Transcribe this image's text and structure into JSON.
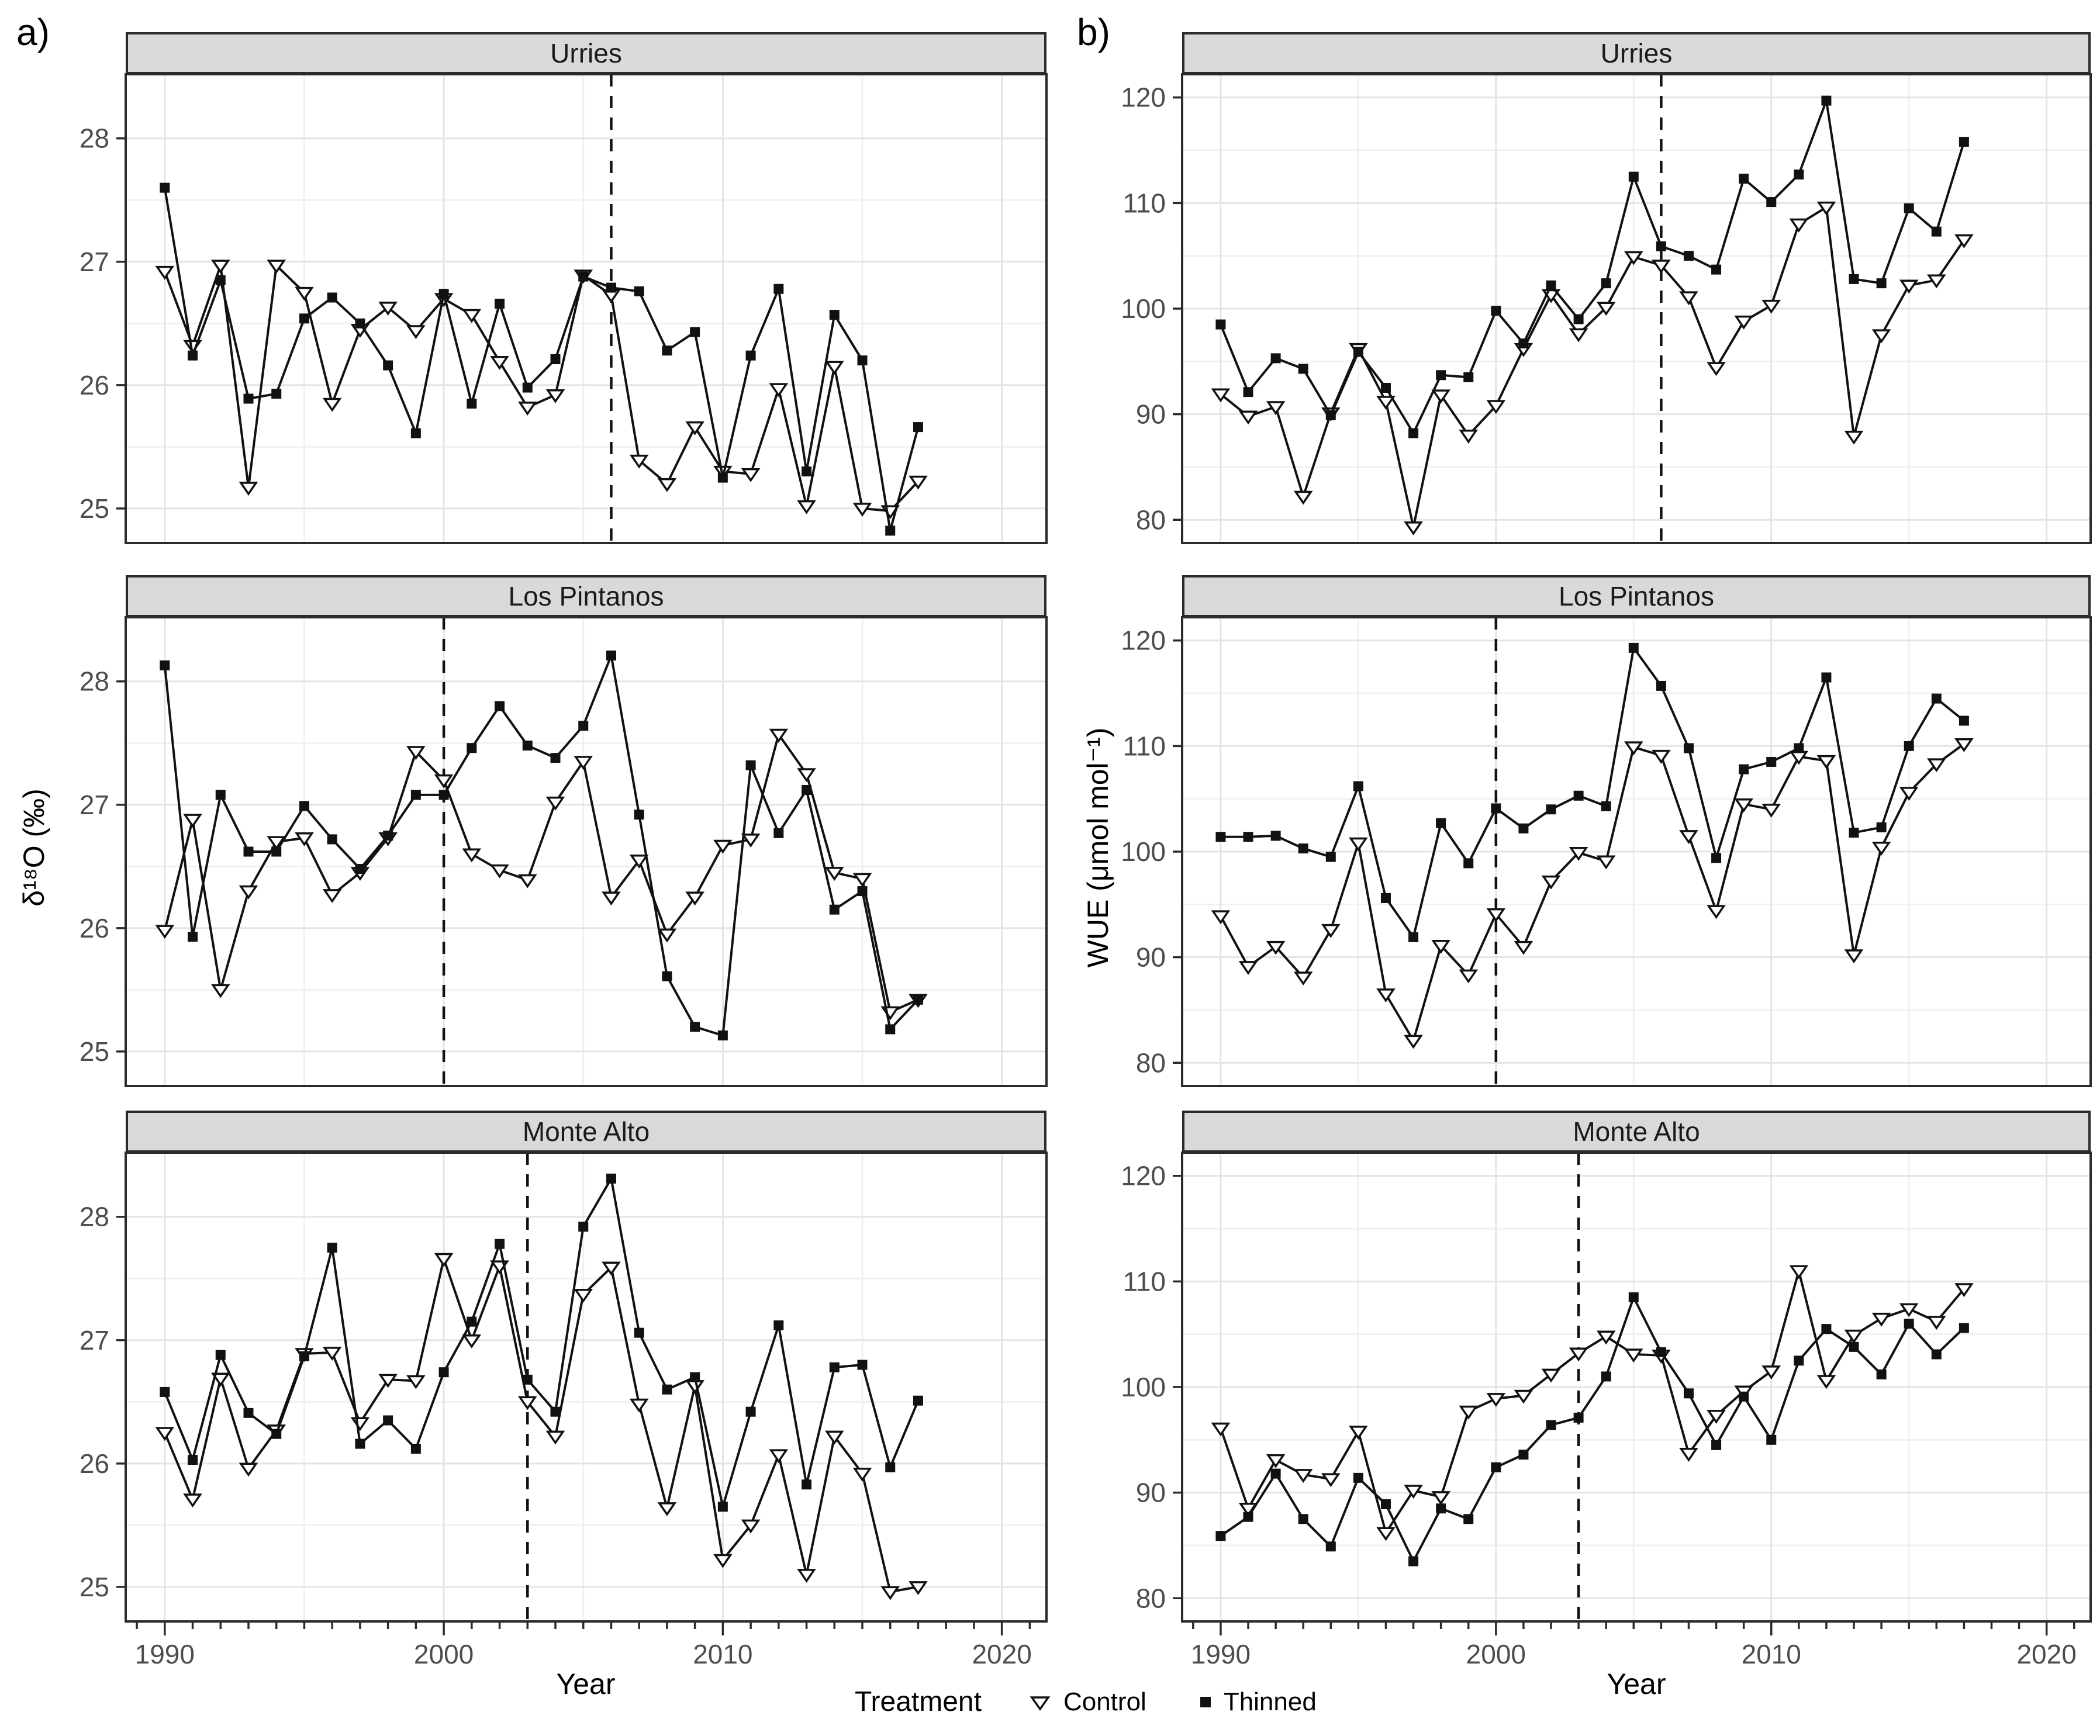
{
  "figure": {
    "panel_a_label": "a)",
    "panel_b_label": "b)",
    "x_label": "Year",
    "legend": {
      "title": "Treatment",
      "items": [
        {
          "label": "Control",
          "marker": "triangle-down-open"
        },
        {
          "label": "Thinned",
          "marker": "square-filled"
        }
      ]
    }
  },
  "chart_data": [
    {
      "type": "line",
      "column": "a",
      "site": "Urries",
      "ylabel": "δ¹⁸O (‰)",
      "xlabel": "Year",
      "xlim": [
        1988.6,
        2021.6
      ],
      "xticks": [
        1990,
        2000,
        2010,
        2020
      ],
      "x_minor_gridlines": [
        1995,
        2005,
        2015
      ],
      "ylim": [
        24.72,
        28.52
      ],
      "yticks": [
        25,
        26,
        27,
        28
      ],
      "y_minor_gridlines": [
        25.5,
        26.5,
        27.5
      ],
      "dashed_line_x": 2006,
      "x": [
        1990,
        1991,
        1992,
        1993,
        1994,
        1995,
        1996,
        1997,
        1998,
        1999,
        2000,
        2001,
        2002,
        2003,
        2004,
        2005,
        2006,
        2007,
        2008,
        2009,
        2010,
        2011,
        2012,
        2013,
        2014,
        2015,
        2016,
        2017
      ],
      "series": [
        {
          "name": "Control",
          "marker": "triangle-down-open",
          "values": [
            26.92,
            26.32,
            26.97,
            25.17,
            26.97,
            26.75,
            25.85,
            26.45,
            26.63,
            26.44,
            26.7,
            26.57,
            26.19,
            25.82,
            25.92,
            26.89,
            26.73,
            25.39,
            25.2,
            25.66,
            25.3,
            25.28,
            25.97,
            25.02,
            26.15,
            25.0,
            24.98,
            25.22
          ]
        },
        {
          "name": "Thinned",
          "marker": "square-filled",
          "values": [
            27.6,
            26.24,
            26.85,
            25.89,
            25.93,
            26.54,
            26.71,
            26.5,
            26.16,
            25.61,
            26.74,
            25.85,
            26.66,
            25.98,
            26.21,
            26.88,
            26.79,
            26.76,
            26.28,
            26.43,
            25.25,
            26.24,
            26.78,
            25.3,
            26.57,
            26.2,
            24.82,
            25.66
          ]
        }
      ]
    },
    {
      "type": "line",
      "column": "a",
      "site": "Los Pintanos",
      "ylabel": "δ¹⁸O (‰)",
      "xlabel": "Year",
      "xlim": [
        1988.6,
        2021.6
      ],
      "xticks": [
        1990,
        2000,
        2010,
        2020
      ],
      "x_minor_gridlines": [
        1995,
        2005,
        2015
      ],
      "ylim": [
        24.72,
        28.52
      ],
      "yticks": [
        25,
        26,
        27,
        28
      ],
      "y_minor_gridlines": [
        25.5,
        26.5,
        27.5
      ],
      "dashed_line_x": 2000,
      "x": [
        1990,
        1991,
        1992,
        1993,
        1994,
        1995,
        1996,
        1997,
        1998,
        1999,
        2000,
        2001,
        2002,
        2003,
        2004,
        2005,
        2006,
        2007,
        2008,
        2009,
        2010,
        2011,
        2012,
        2013,
        2014,
        2015,
        2016,
        2017
      ],
      "series": [
        {
          "name": "Control",
          "marker": "triangle-down-open",
          "values": [
            25.98,
            26.88,
            25.5,
            26.3,
            26.7,
            26.73,
            26.27,
            26.45,
            26.73,
            27.43,
            27.2,
            26.6,
            26.47,
            26.39,
            27.02,
            27.35,
            26.25,
            26.55,
            25.95,
            26.25,
            26.67,
            26.72,
            27.57,
            27.25,
            26.45,
            26.4,
            25.32,
            25.42
          ]
        },
        {
          "name": "Thinned",
          "marker": "square-filled",
          "values": [
            28.13,
            25.93,
            27.08,
            26.62,
            26.62,
            26.99,
            26.72,
            26.48,
            26.75,
            27.08,
            27.08,
            27.46,
            27.8,
            27.48,
            27.38,
            27.64,
            28.21,
            26.92,
            25.61,
            25.2,
            25.13,
            27.32,
            26.77,
            27.12,
            26.15,
            26.3,
            25.18,
            25.42
          ]
        }
      ]
    },
    {
      "type": "line",
      "column": "a",
      "site": "Monte Alto",
      "ylabel": "δ¹⁸O (‰)",
      "xlabel": "Year",
      "xlim": [
        1988.6,
        2021.6
      ],
      "xticks": [
        1990,
        2000,
        2010,
        2020
      ],
      "x_minor_gridlines": [
        1995,
        2005,
        2015
      ],
      "ylim": [
        24.72,
        28.52
      ],
      "yticks": [
        25,
        26,
        27,
        28
      ],
      "y_minor_gridlines": [
        25.5,
        26.5,
        27.5
      ],
      "dashed_line_x": 2003,
      "x": [
        1990,
        1991,
        1992,
        1993,
        1994,
        1995,
        1996,
        1997,
        1998,
        1999,
        2000,
        2001,
        2002,
        2003,
        2004,
        2005,
        2006,
        2007,
        2008,
        2009,
        2010,
        2011,
        2012,
        2013,
        2014,
        2015,
        2016,
        2017
      ],
      "series": [
        {
          "name": "Control",
          "marker": "triangle-down-open",
          "values": [
            26.25,
            25.71,
            26.69,
            25.96,
            26.27,
            26.89,
            26.9,
            26.33,
            26.68,
            26.67,
            27.66,
            27.0,
            27.6,
            26.5,
            26.22,
            27.37,
            27.59,
            26.48,
            25.64,
            26.63,
            25.22,
            25.5,
            26.07,
            25.1,
            26.22,
            25.92,
            24.96,
            25.0
          ]
        },
        {
          "name": "Thinned",
          "marker": "square-filled",
          "values": [
            26.58,
            26.03,
            26.88,
            26.41,
            26.24,
            26.87,
            27.75,
            26.16,
            26.35,
            26.12,
            26.74,
            27.15,
            27.78,
            26.68,
            26.42,
            27.92,
            28.31,
            27.06,
            26.6,
            26.7,
            25.65,
            26.42,
            27.12,
            25.83,
            26.78,
            26.8,
            25.97,
            26.51
          ]
        }
      ]
    },
    {
      "type": "line",
      "column": "b",
      "site": "Urries",
      "ylabel": "WUE (μmol mol⁻¹)",
      "xlabel": "Year",
      "xlim": [
        1988.6,
        2021.6
      ],
      "xticks": [
        1990,
        2000,
        2010,
        2020
      ],
      "x_minor_gridlines": [
        1995,
        2005,
        2015
      ],
      "ylim": [
        77.8,
        122.2
      ],
      "yticks": [
        80,
        90,
        100,
        110,
        120
      ],
      "y_minor_gridlines": [
        85,
        95,
        105,
        115
      ],
      "dashed_line_x": 2006,
      "x": [
        1990,
        1991,
        1992,
        1993,
        1994,
        1995,
        1996,
        1997,
        1998,
        1999,
        2000,
        2001,
        2002,
        2003,
        2004,
        2005,
        2006,
        2007,
        2008,
        2009,
        2010,
        2011,
        2012,
        2013,
        2014,
        2015,
        2016,
        2017
      ],
      "series": [
        {
          "name": "Control",
          "marker": "triangle-down-open",
          "values": [
            91.9,
            89.8,
            90.7,
            82.2,
            90.1,
            96.2,
            91.2,
            79.3,
            91.8,
            88.0,
            90.8,
            96.2,
            101.3,
            97.6,
            100.1,
            104.9,
            104.1,
            101.1,
            94.4,
            98.8,
            100.3,
            108.0,
            109.6,
            87.9,
            97.5,
            102.2,
            102.7,
            106.5
          ]
        },
        {
          "name": "Thinned",
          "marker": "square-filled",
          "values": [
            98.5,
            92.1,
            95.3,
            94.3,
            89.9,
            95.9,
            92.5,
            88.2,
            93.7,
            93.5,
            99.8,
            96.7,
            102.2,
            99.0,
            102.4,
            112.5,
            105.9,
            105.0,
            103.7,
            112.3,
            110.1,
            112.7,
            119.7,
            102.8,
            102.4,
            109.5,
            107.3,
            115.8
          ]
        }
      ]
    },
    {
      "type": "line",
      "column": "b",
      "site": "Los Pintanos",
      "ylabel": "WUE (μmol mol⁻¹)",
      "xlabel": "Year",
      "xlim": [
        1988.6,
        2021.6
      ],
      "xticks": [
        1990,
        2000,
        2010,
        2020
      ],
      "x_minor_gridlines": [
        1995,
        2005,
        2015
      ],
      "ylim": [
        77.8,
        122.2
      ],
      "yticks": [
        80,
        90,
        100,
        110,
        120
      ],
      "y_minor_gridlines": [
        85,
        95,
        105,
        115
      ],
      "dashed_line_x": 2000,
      "x": [
        1990,
        1991,
        1992,
        1993,
        1994,
        1995,
        1996,
        1997,
        1998,
        1999,
        2000,
        2001,
        2002,
        2003,
        2004,
        2005,
        2006,
        2007,
        2008,
        2009,
        2010,
        2011,
        2012,
        2013,
        2014,
        2015,
        2016,
        2017
      ],
      "series": [
        {
          "name": "Control",
          "marker": "triangle-down-open",
          "values": [
            93.9,
            89.1,
            91.0,
            88.1,
            92.6,
            100.8,
            86.5,
            82.1,
            91.1,
            88.3,
            94.1,
            91.0,
            97.2,
            99.9,
            99.1,
            109.9,
            109.1,
            101.5,
            94.4,
            104.5,
            104.0,
            109.0,
            108.6,
            90.2,
            100.4,
            105.6,
            108.3,
            110.2
          ]
        },
        {
          "name": "Thinned",
          "marker": "square-filled",
          "values": [
            101.4,
            101.4,
            101.5,
            100.3,
            99.5,
            106.2,
            95.6,
            91.9,
            102.7,
            98.9,
            104.1,
            102.2,
            104.0,
            105.3,
            104.3,
            119.3,
            115.7,
            109.8,
            99.4,
            107.8,
            108.5,
            109.8,
            116.5,
            101.8,
            102.3,
            110.0,
            114.5,
            112.4
          ]
        }
      ]
    },
    {
      "type": "line",
      "column": "b",
      "site": "Monte Alto",
      "ylabel": "WUE (μmol mol⁻¹)",
      "xlabel": "Year",
      "xlim": [
        1988.6,
        2021.6
      ],
      "xticks": [
        1990,
        2000,
        2010,
        2020
      ],
      "x_minor_gridlines": [
        1995,
        2005,
        2015
      ],
      "ylim": [
        77.8,
        122.2
      ],
      "yticks": [
        80,
        90,
        100,
        110,
        120
      ],
      "y_minor_gridlines": [
        85,
        95,
        105,
        115
      ],
      "dashed_line_x": 2003,
      "x": [
        1990,
        1991,
        1992,
        1993,
        1994,
        1995,
        1996,
        1997,
        1998,
        1999,
        2000,
        2001,
        2002,
        2003,
        2004,
        2005,
        2006,
        2007,
        2008,
        2009,
        2010,
        2011,
        2012,
        2013,
        2014,
        2015,
        2016,
        2017
      ],
      "series": [
        {
          "name": "Control",
          "marker": "triangle-down-open",
          "values": [
            96.1,
            88.5,
            93.1,
            91.7,
            91.3,
            95.8,
            86.2,
            90.2,
            89.6,
            97.7,
            98.9,
            99.2,
            101.2,
            103.2,
            104.8,
            103.1,
            103.0,
            93.7,
            97.3,
            99.6,
            101.5,
            111.0,
            100.6,
            104.9,
            106.5,
            107.4,
            106.2,
            109.3
          ]
        },
        {
          "name": "Thinned",
          "marker": "square-filled",
          "values": [
            85.9,
            87.7,
            91.8,
            87.5,
            84.9,
            91.4,
            88.9,
            83.5,
            88.5,
            87.5,
            92.4,
            93.6,
            96.4,
            97.1,
            101.0,
            108.5,
            103.3,
            99.4,
            94.5,
            99.1,
            95.0,
            102.5,
            105.5,
            103.8,
            101.2,
            106.0,
            103.1,
            105.6
          ]
        }
      ]
    }
  ]
}
